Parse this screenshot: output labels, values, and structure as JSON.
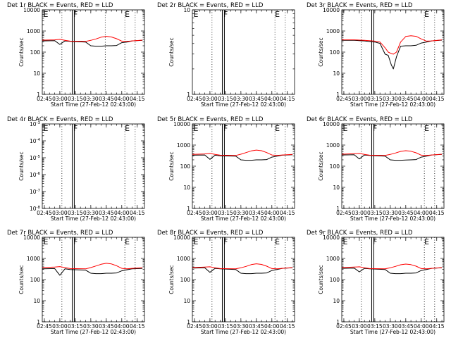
{
  "figure": {
    "xlabel": "Start Time (27-Feb-12 02:43:00)",
    "ylabel": "Counts/sec",
    "xticks": [
      "02:45",
      "03:00",
      "03:15",
      "03:30",
      "03:45",
      "04:00",
      "04:15"
    ],
    "colors": {
      "events": "#000000",
      "lld": "#ff0000"
    }
  },
  "chart_data": [
    {
      "type": "line",
      "title": "Det 1r BLACK = Events, RED = LLD",
      "ylabel": "Counts/sec",
      "yscale": "log",
      "ylim": [
        1,
        10000
      ],
      "yticks": [
        "1",
        "10",
        "100",
        "1000",
        "10000"
      ],
      "xlim": [
        "02:43",
        "04:22"
      ],
      "markers": [
        "03:12",
        "03:14"
      ],
      "dotted": [
        "03:02",
        "03:44",
        "04:03",
        "04:13"
      ],
      "flags": [
        {
          "text": "E",
          "x": "02:44"
        },
        {
          "text": "F",
          "x": "03:13"
        },
        {
          "text": "E",
          "x": "04:03"
        }
      ],
      "series": [
        {
          "name": "Events",
          "color": "#000000",
          "x": [
            "02:43",
            "02:55",
            "03:00",
            "03:05",
            "03:10",
            "03:25",
            "03:30",
            "03:35",
            "03:40",
            "03:45",
            "03:50",
            "03:55",
            "04:00",
            "04:05",
            "04:10",
            "04:20"
          ],
          "values": [
            340,
            350,
            230,
            340,
            320,
            300,
            200,
            190,
            190,
            200,
            200,
            205,
            280,
            300,
            340,
            360
          ]
        },
        {
          "name": "LLD",
          "color": "#ff0000",
          "x": [
            "02:43",
            "02:55",
            "03:00",
            "03:05",
            "03:10",
            "03:25",
            "03:30",
            "03:35",
            "03:40",
            "03:45",
            "03:50",
            "03:55",
            "04:00",
            "04:05",
            "04:10",
            "04:20"
          ],
          "values": [
            370,
            380,
            400,
            360,
            330,
            320,
            360,
            420,
            510,
            560,
            520,
            430,
            330,
            320,
            340,
            370
          ]
        }
      ]
    },
    {
      "type": "line",
      "title": "Det 2r BLACK = Events, RED = LLD",
      "ylabel": "Counts/sec",
      "yscale": "log",
      "ylim": [
        1,
        10
      ],
      "yticks": [
        "1",
        "10"
      ],
      "xlim": [
        "02:43",
        "04:22"
      ],
      "markers": [
        "03:12",
        "03:14"
      ],
      "dotted": [
        "03:02",
        "04:03",
        "04:13"
      ],
      "flags": [
        {
          "text": "E",
          "x": "02:44"
        },
        {
          "text": "F",
          "x": "03:13"
        },
        {
          "text": "E",
          "x": "04:03"
        }
      ],
      "series": []
    },
    {
      "type": "line",
      "title": "Det 3r BLACK = Events, RED = LLD",
      "ylabel": "Counts/sec",
      "yscale": "log",
      "ylim": [
        1,
        10000
      ],
      "yticks": [
        "1",
        "10",
        "100",
        "1000",
        "10000"
      ],
      "xlim": [
        "02:43",
        "04:22"
      ],
      "markers": [
        "03:12",
        "03:14"
      ],
      "dotted": [
        "03:02",
        "04:03",
        "04:13"
      ],
      "flags": [
        {
          "text": "E",
          "x": "04:03"
        }
      ],
      "series": [
        {
          "name": "Events",
          "color": "#000000",
          "x": [
            "02:43",
            "02:55",
            "03:05",
            "03:15",
            "03:20",
            "03:25",
            "03:28",
            "03:31",
            "03:33",
            "03:36",
            "03:40",
            "03:45",
            "03:50",
            "03:55",
            "04:00",
            "04:05",
            "04:10",
            "04:20"
          ],
          "values": [
            360,
            360,
            340,
            300,
            260,
            80,
            70,
            25,
            16,
            60,
            190,
            200,
            200,
            210,
            270,
            300,
            340,
            370
          ]
        },
        {
          "name": "LLD",
          "color": "#ff0000",
          "x": [
            "02:43",
            "02:55",
            "03:05",
            "03:15",
            "03:20",
            "03:25",
            "03:28",
            "03:31",
            "03:33",
            "03:36",
            "03:40",
            "03:45",
            "03:50",
            "03:55",
            "04:00",
            "04:05",
            "04:10",
            "04:20"
          ],
          "values": [
            380,
            380,
            360,
            330,
            300,
            160,
            100,
            85,
            80,
            100,
            300,
            550,
            600,
            560,
            420,
            330,
            340,
            380
          ]
        }
      ]
    },
    {
      "type": "line",
      "title": "Det 4r BLACK = Events, RED = LLD",
      "ylabel": "Counts/sec",
      "yscale": "log",
      "ylim": [
        1e-08,
        0.001
      ],
      "yticks": [
        "10^-8",
        "10^-7",
        "10^-6",
        "10^-5",
        "10^-4",
        "10^-3"
      ],
      "xlim": [
        "02:43",
        "04:22"
      ],
      "markers": [
        "03:12",
        "03:14"
      ],
      "dotted": [
        "03:02",
        "04:03",
        "04:13"
      ],
      "flags": [
        {
          "text": "E",
          "x": "02:44"
        },
        {
          "text": "F",
          "x": "03:13"
        },
        {
          "text": "E",
          "x": "04:03"
        }
      ],
      "series": []
    },
    {
      "type": "line",
      "title": "Det 5r BLACK = Events, RED = LLD",
      "ylabel": "Counts/sec",
      "yscale": "log",
      "ylim": [
        1,
        10000
      ],
      "yticks": [
        "1",
        "10",
        "100",
        "1000",
        "10000"
      ],
      "xlim": [
        "02:43",
        "04:22"
      ],
      "markers": [
        "03:12",
        "03:14"
      ],
      "dotted": [
        "03:02",
        "04:03",
        "04:13"
      ],
      "flags": [
        {
          "text": "E",
          "x": "02:44"
        },
        {
          "text": "F",
          "x": "03:13"
        },
        {
          "text": "E",
          "x": "04:03"
        }
      ],
      "series": [
        {
          "name": "Events",
          "color": "#000000",
          "x": [
            "02:43",
            "02:55",
            "03:00",
            "03:05",
            "03:10",
            "03:25",
            "03:30",
            "03:35",
            "03:40",
            "03:45",
            "03:50",
            "03:55",
            "04:00",
            "04:05",
            "04:10",
            "04:20"
          ],
          "values": [
            330,
            340,
            210,
            330,
            310,
            300,
            200,
            190,
            190,
            200,
            200,
            205,
            270,
            300,
            330,
            350
          ]
        },
        {
          "name": "LLD",
          "color": "#ff0000",
          "x": [
            "02:43",
            "02:55",
            "03:00",
            "03:05",
            "03:10",
            "03:25",
            "03:30",
            "03:35",
            "03:40",
            "03:45",
            "03:50",
            "03:55",
            "04:00",
            "04:05",
            "04:10",
            "04:20"
          ],
          "values": [
            360,
            380,
            400,
            360,
            330,
            320,
            370,
            440,
            530,
            580,
            540,
            440,
            340,
            320,
            340,
            360
          ]
        }
      ]
    },
    {
      "type": "line",
      "title": "Det 6r BLACK = Events, RED = LLD",
      "ylabel": "Counts/sec",
      "yscale": "log",
      "ylim": [
        1,
        10000
      ],
      "yticks": [
        "1",
        "10",
        "100",
        "1000",
        "10000"
      ],
      "xlim": [
        "02:43",
        "04:22"
      ],
      "markers": [
        "03:12",
        "03:14"
      ],
      "dotted": [
        "03:02",
        "04:03",
        "04:13"
      ],
      "flags": [
        {
          "text": "E",
          "x": "02:44"
        },
        {
          "text": "F",
          "x": "03:13"
        },
        {
          "text": "E",
          "x": "04:03"
        }
      ],
      "series": [
        {
          "name": "Events",
          "color": "#000000",
          "x": [
            "02:43",
            "02:55",
            "03:00",
            "03:05",
            "03:10",
            "03:25",
            "03:30",
            "03:35",
            "03:40",
            "03:45",
            "03:50",
            "03:55",
            "04:00",
            "04:05",
            "04:10",
            "04:20"
          ],
          "values": [
            340,
            350,
            220,
            340,
            320,
            300,
            200,
            190,
            190,
            195,
            200,
            205,
            270,
            300,
            340,
            360
          ]
        },
        {
          "name": "LLD",
          "color": "#ff0000",
          "x": [
            "02:43",
            "02:55",
            "03:00",
            "03:05",
            "03:10",
            "03:25",
            "03:30",
            "03:35",
            "03:40",
            "03:45",
            "03:50",
            "03:55",
            "04:00",
            "04:05",
            "04:10",
            "04:20"
          ],
          "values": [
            370,
            390,
            400,
            360,
            330,
            320,
            360,
            420,
            500,
            540,
            510,
            430,
            330,
            320,
            340,
            370
          ]
        }
      ]
    },
    {
      "type": "line",
      "title": "Det 7r BLACK = Events, RED = LLD",
      "ylabel": "Counts/sec",
      "yscale": "log",
      "ylim": [
        1,
        10000
      ],
      "yticks": [
        "1",
        "10",
        "100",
        "1000",
        "10000"
      ],
      "xlim": [
        "02:43",
        "04:22"
      ],
      "markers": [
        "03:12",
        "03:14"
      ],
      "dotted": [
        "03:02",
        "04:03",
        "04:13"
      ],
      "flags": [
        {
          "text": "E",
          "x": "02:44"
        },
        {
          "text": "F",
          "x": "03:13"
        },
        {
          "text": "E",
          "x": "04:03"
        }
      ],
      "series": [
        {
          "name": "Events",
          "color": "#000000",
          "x": [
            "02:43",
            "02:55",
            "03:00",
            "03:05",
            "03:10",
            "03:25",
            "03:30",
            "03:35",
            "03:40",
            "03:45",
            "03:50",
            "03:55",
            "04:00",
            "04:05",
            "04:10",
            "04:20"
          ],
          "values": [
            320,
            330,
            160,
            320,
            300,
            280,
            200,
            190,
            190,
            200,
            200,
            205,
            260,
            290,
            320,
            340
          ]
        },
        {
          "name": "LLD",
          "color": "#ff0000",
          "x": [
            "02:43",
            "02:55",
            "03:00",
            "03:05",
            "03:10",
            "03:25",
            "03:30",
            "03:35",
            "03:40",
            "03:45",
            "03:50",
            "03:55",
            "04:00",
            "04:05",
            "04:10",
            "04:20"
          ],
          "values": [
            370,
            390,
            410,
            370,
            330,
            320,
            370,
            440,
            530,
            590,
            550,
            450,
            340,
            320,
            340,
            360
          ]
        }
      ]
    },
    {
      "type": "line",
      "title": "Det 8r BLACK = Events, RED = LLD",
      "ylabel": "Counts/sec",
      "yscale": "log",
      "ylim": [
        1,
        10000
      ],
      "yticks": [
        "1",
        "10",
        "100",
        "1000",
        "10000"
      ],
      "xlim": [
        "02:43",
        "04:22"
      ],
      "markers": [
        "03:12",
        "03:14"
      ],
      "dotted": [
        "03:02",
        "04:03",
        "04:13"
      ],
      "flags": [
        {
          "text": "E",
          "x": "02:44"
        },
        {
          "text": "F",
          "x": "03:13"
        },
        {
          "text": "E",
          "x": "04:03"
        }
      ],
      "series": [
        {
          "name": "Events",
          "color": "#000000",
          "x": [
            "02:43",
            "02:55",
            "03:00",
            "03:05",
            "03:10",
            "03:25",
            "03:30",
            "03:35",
            "03:40",
            "03:45",
            "03:50",
            "03:55",
            "04:00",
            "04:05",
            "04:10",
            "04:20"
          ],
          "values": [
            350,
            360,
            220,
            340,
            320,
            300,
            200,
            190,
            190,
            200,
            200,
            205,
            270,
            300,
            340,
            360
          ]
        },
        {
          "name": "LLD",
          "color": "#ff0000",
          "x": [
            "02:43",
            "02:55",
            "03:00",
            "03:05",
            "03:10",
            "03:25",
            "03:30",
            "03:35",
            "03:40",
            "03:45",
            "03:50",
            "03:55",
            "04:00",
            "04:05",
            "04:10",
            "04:20"
          ],
          "values": [
            370,
            390,
            400,
            360,
            330,
            320,
            360,
            420,
            510,
            560,
            520,
            430,
            330,
            320,
            340,
            370
          ]
        }
      ]
    },
    {
      "type": "line",
      "title": "Det 9r BLACK = Events, RED = LLD",
      "ylabel": "Counts/sec",
      "yscale": "log",
      "ylim": [
        1,
        10000
      ],
      "yticks": [
        "1",
        "10",
        "100",
        "1000",
        "10000"
      ],
      "xlim": [
        "02:43",
        "04:22"
      ],
      "markers": [
        "03:12",
        "03:14"
      ],
      "dotted": [
        "03:02",
        "04:03",
        "04:13"
      ],
      "flags": [
        {
          "text": "E",
          "x": "02:44"
        },
        {
          "text": "F",
          "x": "03:13"
        },
        {
          "text": "E",
          "x": "04:03"
        }
      ],
      "series": [
        {
          "name": "Events",
          "color": "#000000",
          "x": [
            "02:43",
            "02:55",
            "03:00",
            "03:05",
            "03:10",
            "03:25",
            "03:30",
            "03:35",
            "03:40",
            "03:45",
            "03:50",
            "03:55",
            "04:00",
            "04:05",
            "04:10",
            "04:20"
          ],
          "values": [
            340,
            350,
            230,
            340,
            320,
            300,
            200,
            190,
            190,
            200,
            200,
            205,
            270,
            300,
            340,
            360
          ]
        },
        {
          "name": "LLD",
          "color": "#ff0000",
          "x": [
            "02:43",
            "02:55",
            "03:00",
            "03:05",
            "03:10",
            "03:25",
            "03:30",
            "03:35",
            "03:40",
            "03:45",
            "03:50",
            "03:55",
            "04:00",
            "04:05",
            "04:10",
            "04:20"
          ],
          "values": [
            370,
            390,
            400,
            360,
            330,
            320,
            360,
            420,
            500,
            540,
            510,
            430,
            330,
            320,
            340,
            370
          ]
        }
      ]
    }
  ]
}
